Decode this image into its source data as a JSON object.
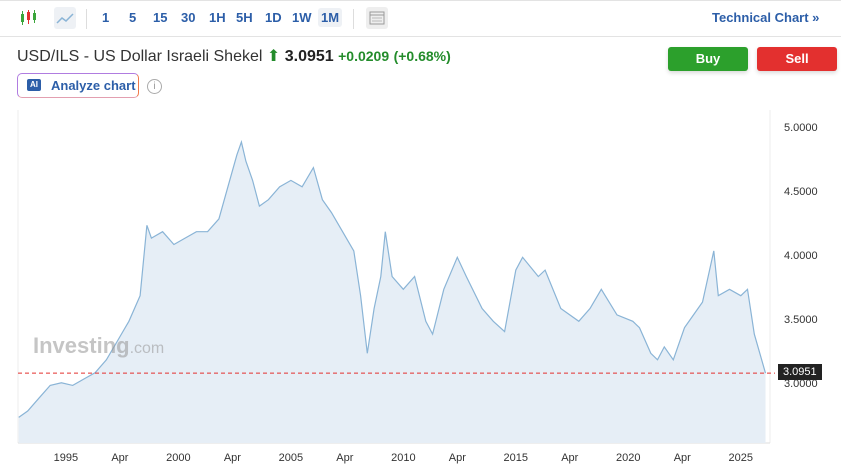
{
  "toolbar": {
    "intervals": [
      "1",
      "5",
      "15",
      "30",
      "1H",
      "5H",
      "1D",
      "1W",
      "1M"
    ],
    "active": "1M",
    "technical_chart": "Technical Chart »"
  },
  "header": {
    "title": "USD/ILS - US Dollar Israeli Shekel",
    "price": "3.0951",
    "change": "+0.0209",
    "change_pct": "(+0.68%)"
  },
  "buttons": {
    "buy": "Buy",
    "sell": "Sell",
    "analyze": "Analyze chart",
    "ai_badge": "AI"
  },
  "watermark": "Investing",
  "watermark_suffix": ".com",
  "colors": {
    "buy": "#2ca02c",
    "sell": "#e3302f",
    "line": "#8ab4d6",
    "fill": "#e6eef6"
  },
  "chart_data": {
    "type": "area",
    "title": "USD/ILS",
    "ylim": [
      2.55,
      5.15
    ],
    "xlim": [
      1992.87,
      2026.3
    ],
    "yticks": [
      "5.0000",
      "4.5000",
      "4.0000",
      "3.5000",
      "3.0000"
    ],
    "ytick_values": [
      5.0,
      4.5,
      4.0,
      3.5,
      3.0
    ],
    "xticks": [
      {
        "label": "1995",
        "x": 1995
      },
      {
        "label": "Apr",
        "x": 1997.4
      },
      {
        "label": "2000",
        "x": 2000
      },
      {
        "label": "Apr",
        "x": 2002.4
      },
      {
        "label": "2005",
        "x": 2005
      },
      {
        "label": "Apr",
        "x": 2007.4
      },
      {
        "label": "2010",
        "x": 2010
      },
      {
        "label": "Apr",
        "x": 2012.4
      },
      {
        "label": "2015",
        "x": 2015
      },
      {
        "label": "Apr",
        "x": 2017.4
      },
      {
        "label": "2020",
        "x": 2020
      },
      {
        "label": "Apr",
        "x": 2022.4
      },
      {
        "label": "2025",
        "x": 2025
      }
    ],
    "last_price": "3.0951",
    "last_value": 3.0951,
    "x": [
      1992.9,
      1993.3,
      1993.8,
      1994.3,
      1994.8,
      1995.3,
      1995.8,
      1996.3,
      1996.8,
      1997.3,
      1997.8,
      1998.3,
      1998.6,
      1998.8,
      1999.3,
      1999.8,
      2000.3,
      2000.8,
      2001.3,
      2001.8,
      2002.2,
      2002.6,
      2002.8,
      2003.0,
      2003.3,
      2003.6,
      2004.0,
      2004.5,
      2005.0,
      2005.5,
      2006.0,
      2006.4,
      2006.8,
      2007.3,
      2007.8,
      2008.1,
      2008.4,
      2008.7,
      2009.0,
      2009.2,
      2009.5,
      2010.0,
      2010.5,
      2011.0,
      2011.3,
      2011.8,
      2012.4,
      2012.8,
      2013.5,
      2014.0,
      2014.5,
      2015.0,
      2015.3,
      2016.0,
      2016.3,
      2017.0,
      2017.8,
      2018.3,
      2018.8,
      2019.5,
      2020.2,
      2020.5,
      2021.0,
      2021.3,
      2021.6,
      2022.0,
      2022.5,
      2022.9,
      2023.3,
      2023.8,
      2024.0,
      2024.5,
      2025.0,
      2025.3,
      2025.6,
      2026.1
    ],
    "y": [
      2.75,
      2.8,
      2.9,
      3.0,
      3.02,
      3.0,
      3.05,
      3.1,
      3.2,
      3.35,
      3.5,
      3.7,
      4.25,
      4.15,
      4.2,
      4.1,
      4.15,
      4.2,
      4.2,
      4.3,
      4.55,
      4.8,
      4.9,
      4.75,
      4.6,
      4.4,
      4.45,
      4.55,
      4.6,
      4.55,
      4.7,
      4.45,
      4.35,
      4.2,
      4.05,
      3.7,
      3.25,
      3.6,
      3.85,
      4.2,
      3.85,
      3.75,
      3.85,
      3.5,
      3.4,
      3.75,
      4.0,
      3.85,
      3.6,
      3.5,
      3.42,
      3.9,
      4.0,
      3.85,
      3.9,
      3.6,
      3.5,
      3.6,
      3.75,
      3.55,
      3.5,
      3.45,
      3.25,
      3.2,
      3.3,
      3.2,
      3.45,
      3.55,
      3.65,
      4.05,
      3.7,
      3.75,
      3.7,
      3.75,
      3.4,
      3.095
    ]
  }
}
